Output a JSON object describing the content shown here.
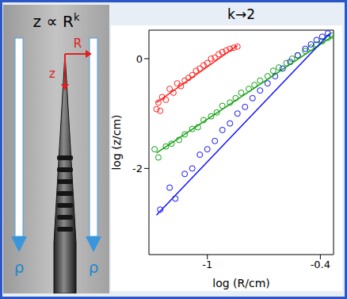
{
  "photo": {
    "title": {
      "text": "z ∝ R",
      "superscript": "k"
    },
    "labels": [
      "R",
      "z"
    ],
    "density_labels": [
      "ρ",
      "ρ"
    ]
  },
  "chart_data": {
    "type": "scatter",
    "title": "k→2",
    "x_label": "log (R/cm)",
    "y_label": "log (z/cm)",
    "xlim": [
      -1.31,
      -0.33
    ],
    "ylim": [
      -3.57,
      0.52
    ],
    "xticks": [
      -1,
      -0.4
    ],
    "yticks": [
      -2,
      0
    ],
    "series": [
      {
        "color": "#ff2020",
        "marker": "open circle",
        "x": [
          -1.27,
          -1.26,
          -1.25,
          -1.24,
          -1.22,
          -1.2,
          -1.18,
          -1.16,
          -1.14,
          -1.12,
          -1.1,
          -1.08,
          -1.06,
          -1.04,
          -1.02,
          -1.0,
          -0.98,
          -0.96,
          -0.94,
          -0.92,
          -0.9,
          -0.88,
          -0.86,
          -0.84
        ],
        "values": [
          -0.92,
          -0.8,
          -0.95,
          -0.7,
          -0.75,
          -0.55,
          -0.62,
          -0.45,
          -0.5,
          -0.4,
          -0.35,
          -0.3,
          -0.22,
          -0.18,
          -0.12,
          -0.08,
          0.0,
          0.02,
          0.08,
          0.12,
          0.15,
          0.18,
          0.2,
          0.22
        ],
        "fit": {
          "x": [
            -1.27,
            -0.84
          ],
          "values": [
            -0.8,
            0.24
          ],
          "line_style": "solid"
        }
      },
      {
        "color": "#10a010",
        "marker": "open circle",
        "x": [
          -1.28,
          -1.26,
          -1.22,
          -1.19,
          -1.15,
          -1.12,
          -1.08,
          -1.05,
          -1.02,
          -0.98,
          -0.95,
          -0.92,
          -0.88,
          -0.85,
          -0.82,
          -0.78,
          -0.75,
          -0.72,
          -0.68,
          -0.65,
          -0.62,
          -0.58,
          -0.55,
          -0.52,
          -0.48,
          -0.45,
          -0.42,
          -0.39,
          -0.36,
          -0.34
        ],
        "values": [
          -1.65,
          -1.8,
          -1.6,
          -1.55,
          -1.48,
          -1.38,
          -1.28,
          -1.25,
          -1.12,
          -1.05,
          -0.98,
          -0.86,
          -0.8,
          -0.72,
          -0.62,
          -0.55,
          -0.48,
          -0.4,
          -0.32,
          -0.22,
          -0.16,
          -0.08,
          0.0,
          0.06,
          0.14,
          0.2,
          0.26,
          0.32,
          0.38,
          0.42
        ],
        "fit": {
          "x": [
            -1.27,
            -0.33
          ],
          "values": [
            -1.72,
            0.42
          ],
          "line_style": "solid"
        }
      },
      {
        "color": "#1010ff",
        "marker": "open circle",
        "x": [
          -1.25,
          -1.2,
          -1.17,
          -1.12,
          -1.08,
          -1.04,
          -1.0,
          -0.96,
          -0.92,
          -0.88,
          -0.84,
          -0.8,
          -0.76,
          -0.72,
          -0.68,
          -0.64,
          -0.6,
          -0.56,
          -0.52,
          -0.48,
          -0.45,
          -0.42,
          -0.39,
          -0.36
        ],
        "values": [
          -2.75,
          -2.35,
          -2.55,
          -2.1,
          -2.0,
          -1.75,
          -1.65,
          -1.5,
          -1.3,
          -1.18,
          -1.0,
          -0.88,
          -0.72,
          -0.58,
          -0.45,
          -0.32,
          -0.18,
          -0.06,
          0.06,
          0.18,
          0.26,
          0.34,
          0.4,
          0.46
        ],
        "fit": {
          "x": [
            -1.27,
            -0.35
          ],
          "values": [
            -2.85,
            0.46
          ],
          "line_style": "solid"
        }
      }
    ]
  }
}
